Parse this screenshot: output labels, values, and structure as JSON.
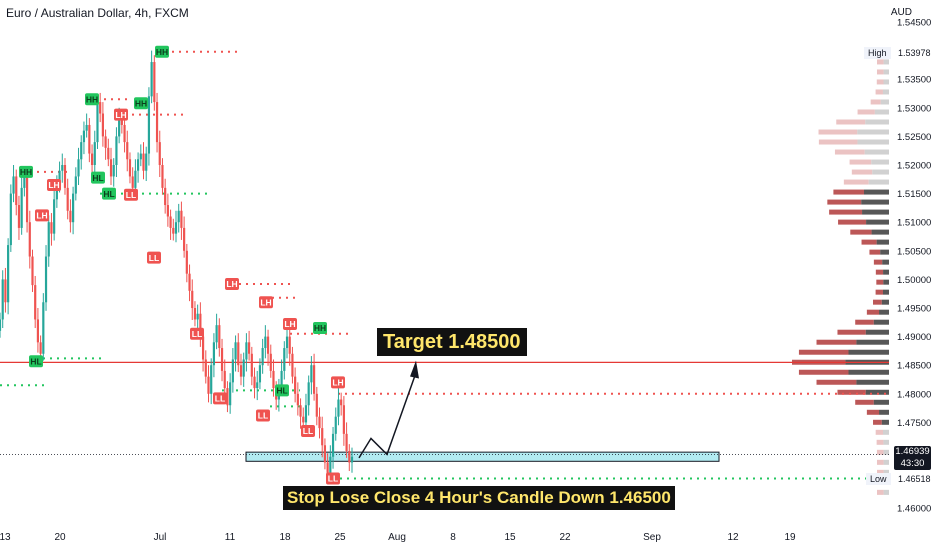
{
  "chart_title": "Euro / Australian Dollar, 4h, FXCM",
  "currency": "AUD",
  "annotations": {
    "target": "Target 1.48500",
    "stop": "Stop Lose Close 4 Hour's Candle Down 1.46500"
  },
  "price_panel": {
    "high_label": "High",
    "high_value": "1.53978",
    "low_label": "Low",
    "low_value": "1.46518",
    "last_price": "1.46939",
    "countdown": "43:30"
  },
  "colors": {
    "up": "#26a69a",
    "down": "#ef5350",
    "hh_hl": "#22c55e",
    "lh_ll": "#ef5350",
    "zone_fill": "#b2ebf2",
    "resistance": "#e53935"
  },
  "chart_data": {
    "type": "candlestick",
    "title": "Euro / Australian Dollar, 4h, FXCM",
    "ylabel": "AUD",
    "ylim": [
      1.46,
      1.545
    ],
    "y_ticks": [
      "1.54500",
      "1.54000",
      "1.53500",
      "1.53000",
      "1.52500",
      "1.52000",
      "1.51500",
      "1.51000",
      "1.50500",
      "1.50000",
      "1.49500",
      "1.49000",
      "1.48500",
      "1.48000",
      "1.47500",
      "1.47000",
      "1.46500",
      "1.46000"
    ],
    "x_ticks": [
      "13",
      "20",
      "Jul",
      "11",
      "18",
      "25",
      "Aug",
      "8",
      "15",
      "22",
      "Sep",
      "12",
      "19"
    ],
    "series": [
      {
        "values": [
          1.493,
          1.5,
          1.496,
          1.506,
          1.515,
          1.518,
          1.513,
          1.509,
          1.516,
          1.518,
          1.51,
          1.504,
          1.499,
          1.493,
          1.489,
          1.487,
          1.496,
          1.504,
          1.51,
          1.508,
          1.514,
          1.517,
          1.519,
          1.52,
          1.516,
          1.512,
          1.51,
          1.515,
          1.518,
          1.521,
          1.524,
          1.526,
          1.527,
          1.522,
          1.52,
          1.524,
          1.531,
          1.529,
          1.525,
          1.523,
          1.521,
          1.518,
          1.52,
          1.525,
          1.528,
          1.527,
          1.524,
          1.521,
          1.518,
          1.516,
          1.519,
          1.521,
          1.522,
          1.519,
          1.522,
          1.532,
          1.538,
          1.531,
          1.524,
          1.52,
          1.516,
          1.513,
          1.511,
          1.509,
          1.508,
          1.51,
          1.512,
          1.509,
          1.505,
          1.501,
          1.498,
          1.495,
          1.493,
          1.494,
          1.49,
          1.486,
          1.483,
          1.48,
          1.485,
          1.489,
          1.492,
          1.488,
          1.484,
          1.481,
          1.478,
          1.482,
          1.486,
          1.489,
          1.485,
          1.483,
          1.486,
          1.489,
          1.487,
          1.483,
          1.481,
          1.482,
          1.485,
          1.488,
          1.49,
          1.487,
          1.484,
          1.481,
          1.479,
          1.481,
          1.484,
          1.488,
          1.49,
          1.487,
          1.483,
          1.48,
          1.478,
          1.476,
          1.475,
          1.478,
          1.482,
          1.485,
          1.48,
          1.476,
          1.474,
          1.471,
          1.468,
          1.466,
          1.469,
          1.473,
          1.476,
          1.479,
          1.478,
          1.473,
          1.47,
          1.468,
          1.469
        ]
      }
    ],
    "swing_labels": [
      {
        "label": "HH",
        "price": 1.5188
      },
      {
        "label": "LH",
        "price": 1.5165
      },
      {
        "label": "LH",
        "price": 1.5112
      },
      {
        "label": "HL",
        "price": 1.4857
      },
      {
        "label": "HH",
        "price": 1.5315
      },
      {
        "label": "HL",
        "price": 1.5178
      },
      {
        "label": "HL",
        "price": 1.515
      },
      {
        "label": "LH",
        "price": 1.5288
      },
      {
        "label": "LL",
        "price": 1.5148
      },
      {
        "label": "HH",
        "price": 1.5308
      },
      {
        "label": "HH",
        "price": 1.5398
      },
      {
        "label": "LL",
        "price": 1.5038
      },
      {
        "label": "LH",
        "price": 1.4992
      },
      {
        "label": "LL",
        "price": 1.4905
      },
      {
        "label": "LH",
        "price": 1.496
      },
      {
        "label": "LH",
        "price": 1.4922
      },
      {
        "label": "LL",
        "price": 1.4792
      },
      {
        "label": "HL",
        "price": 1.4806
      },
      {
        "label": "LL",
        "price": 1.4762
      },
      {
        "label": "HH",
        "price": 1.4915
      },
      {
        "label": "LH",
        "price": 1.482
      },
      {
        "label": "LL",
        "price": 1.4735
      },
      {
        "label": "LL",
        "price": 1.4652
      }
    ],
    "levels": {
      "resistance": 1.4855,
      "high": 1.53978,
      "low": 1.46518,
      "last": 1.46939,
      "target": 1.485,
      "stop": 1.465,
      "zone": [
        1.4682,
        1.4698
      ]
    }
  }
}
